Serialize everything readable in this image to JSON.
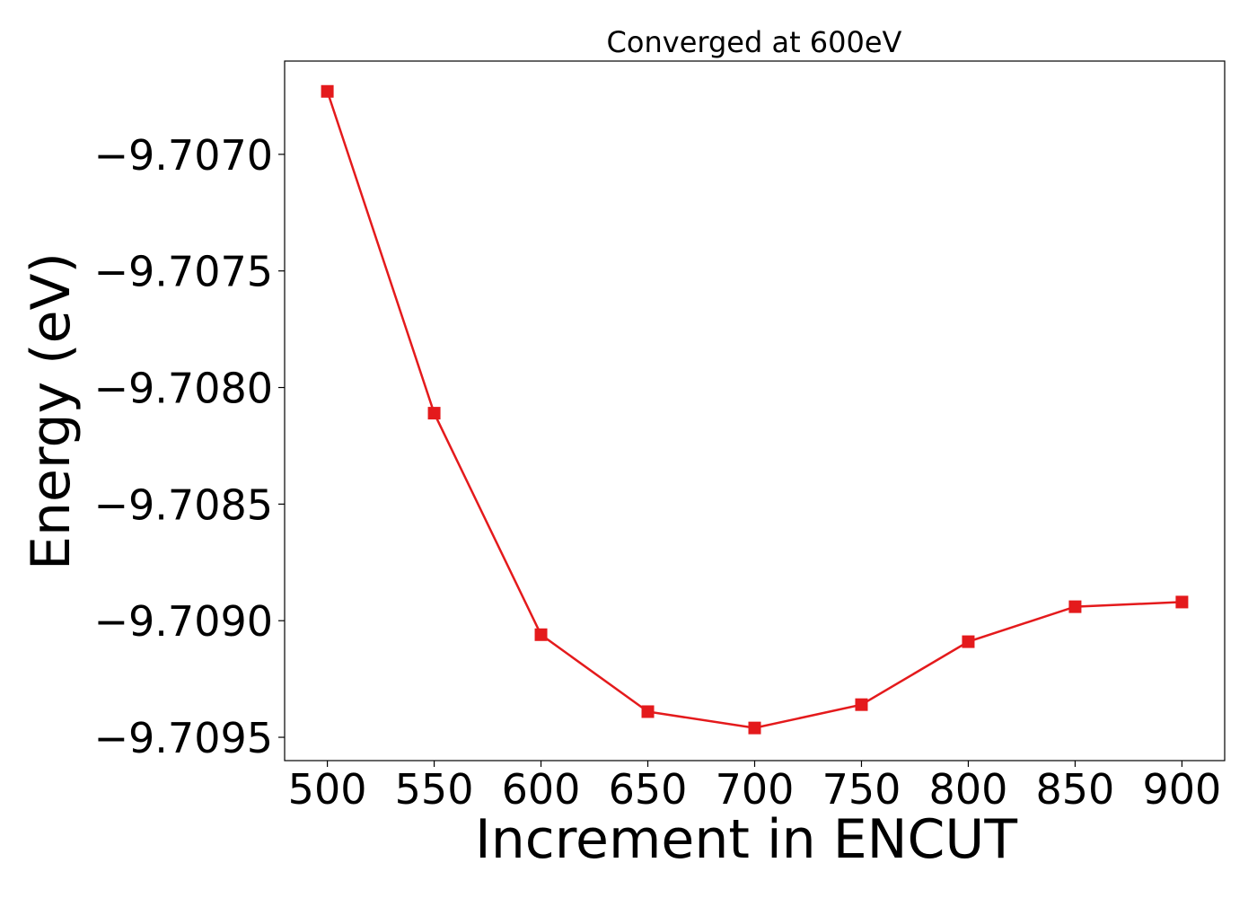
{
  "chart_data": {
    "type": "line",
    "title": "Converged at 600eV",
    "xlabel": "Increment in ENCUT",
    "ylabel": "Energy (eV)",
    "x": [
      500,
      550,
      600,
      650,
      700,
      750,
      800,
      850,
      900
    ],
    "series": [
      {
        "name": "",
        "color": "#e41a1c",
        "marker": "square",
        "values": [
          -9.70673,
          -9.70811,
          -9.70906,
          -9.70939,
          -9.70946,
          -9.70936,
          -9.70909,
          -9.70894,
          -9.70892
        ]
      }
    ],
    "xlim": [
      480,
      920
    ],
    "ylim": [
      -9.7096,
      -9.7066
    ],
    "xticks": [
      500,
      550,
      600,
      650,
      700,
      750,
      800,
      850,
      900
    ],
    "yticks": [
      -9.707,
      -9.7075,
      -9.708,
      -9.7085,
      -9.709,
      -9.7095
    ],
    "ytick_labels": [
      "−9.7070",
      "−9.7075",
      "−9.7080",
      "−9.7085",
      "−9.7090",
      "−9.7095"
    ],
    "grid": false,
    "legend": "none"
  }
}
